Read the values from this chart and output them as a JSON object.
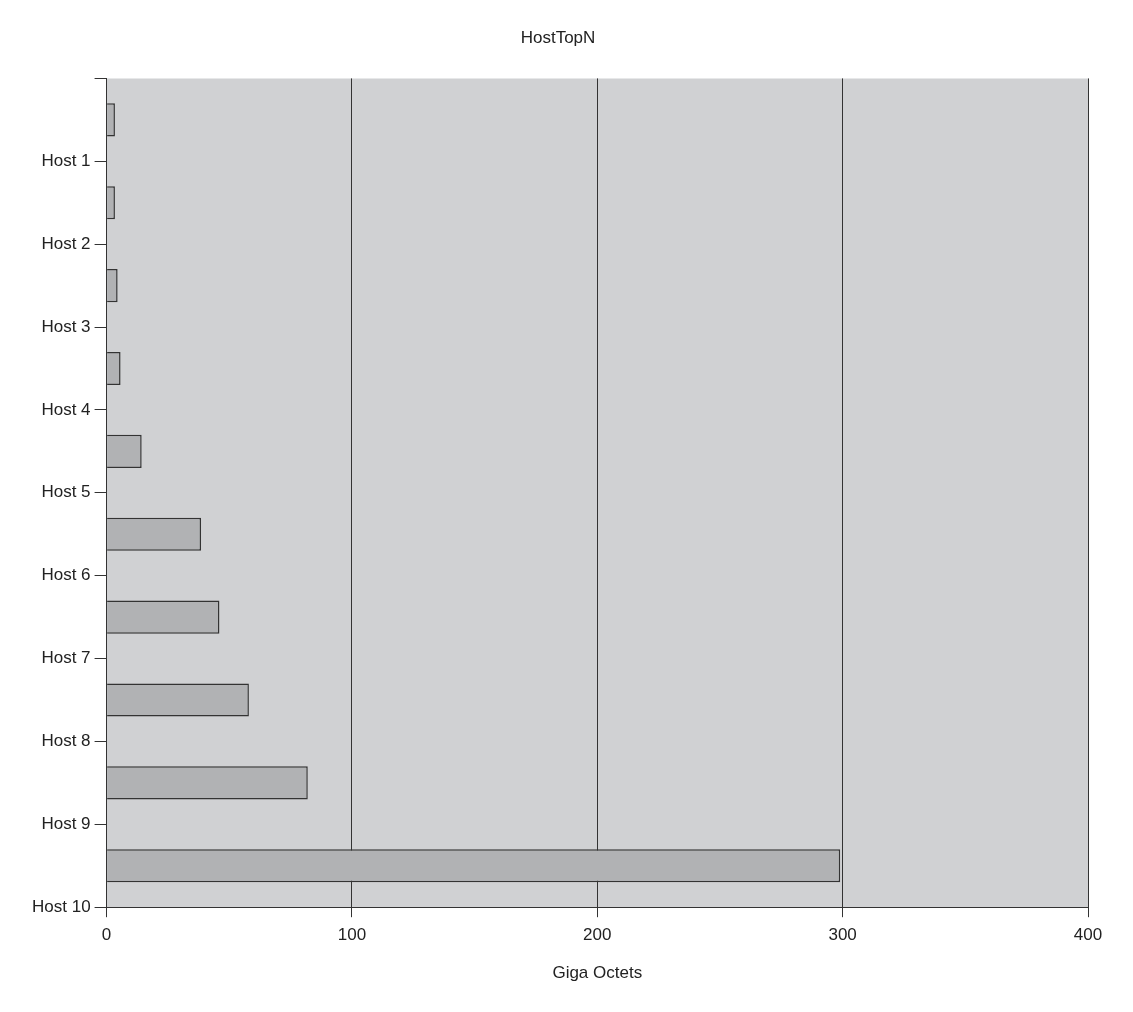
{
  "chart_data": {
    "type": "bar",
    "orientation": "horizontal",
    "title": "HostTopN",
    "xlabel": "Giga Octets",
    "categories": [
      "Host 1",
      "Host 2",
      "Host 3",
      "Host 4",
      "Host 5",
      "Host 6",
      "Host 7",
      "Host 8",
      "Host 9",
      "Host 10"
    ],
    "values": [
      3.4,
      3.4,
      4.5,
      5.7,
      14.3,
      38.5,
      46,
      58,
      82,
      299
    ],
    "color": "#b1b2b4",
    "xlim": [
      0,
      400
    ],
    "xticks": [
      0,
      100,
      200,
      300,
      400
    ],
    "grid": "x"
  }
}
